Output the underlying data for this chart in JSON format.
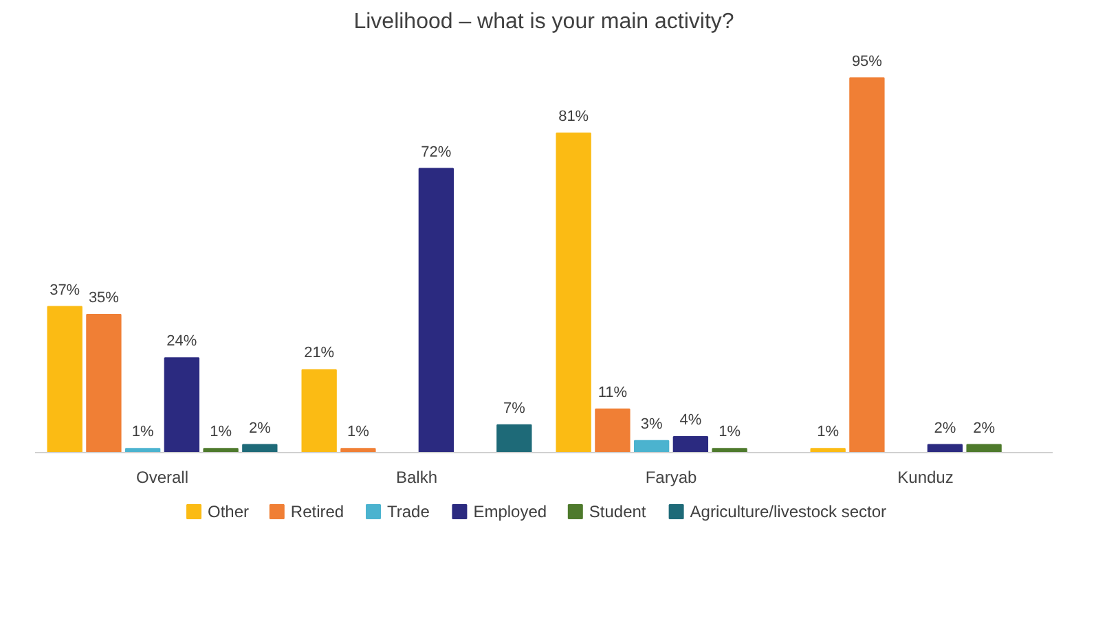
{
  "chart_data": {
    "type": "bar",
    "title": "Livelihood – what is your main activity?",
    "categories": [
      "Overall",
      "Balkh",
      "Faryab",
      "Kunduz"
    ],
    "legend": "bottom",
    "series": [
      {
        "name": "Other",
        "color": "#fbbb14",
        "values": [
          37,
          21,
          81,
          1
        ],
        "value_labels": [
          "37%",
          "21%",
          "81%",
          "1%"
        ]
      },
      {
        "name": "Retired",
        "color": "#f07f35",
        "values": [
          35,
          1,
          11,
          95
        ],
        "value_labels": [
          "35%",
          "1%",
          "11%",
          "95%"
        ]
      },
      {
        "name": "Trade",
        "color": "#4bb3cf",
        "values": [
          1,
          null,
          3,
          null
        ],
        "value_labels": [
          "1%",
          null,
          "3%",
          null
        ]
      },
      {
        "name": "Employed",
        "color": "#2b2a80",
        "values": [
          24,
          72,
          4,
          2
        ],
        "value_labels": [
          "24%",
          "72%",
          "4%",
          "2%"
        ]
      },
      {
        "name": "Student",
        "color": "#4e7a2c",
        "values": [
          1,
          null,
          1,
          2
        ],
        "value_labels": [
          "1%",
          null,
          "1%",
          "2%"
        ]
      },
      {
        "name": "Agriculture/livestock sector",
        "color": "#1e6a78",
        "values": [
          2,
          7,
          null,
          null
        ],
        "value_labels": [
          "2%",
          "7%",
          null,
          null
        ]
      }
    ]
  }
}
